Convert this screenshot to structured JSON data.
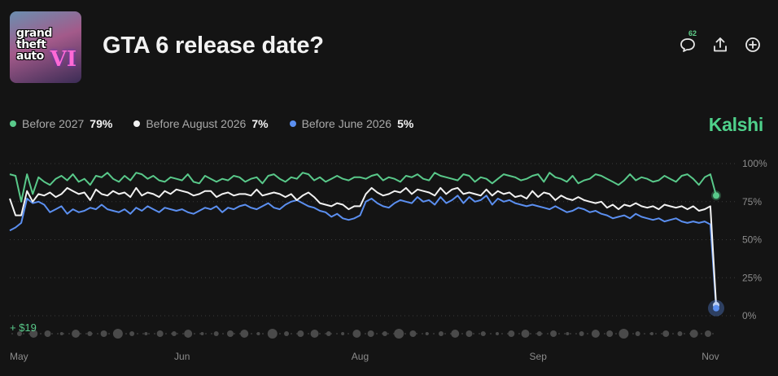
{
  "header": {
    "title": "GTA 6 release date?",
    "thumbnail_text": "grand theft auto",
    "thumbnail_mark": "VI",
    "comment_count": "62",
    "icons": [
      "comment-icon",
      "share-icon",
      "add-icon"
    ]
  },
  "brand": "Kalshi",
  "colors": {
    "green": "#59c98a",
    "white": "#f2f2f2",
    "blue": "#5b8ff0",
    "background": "#141414"
  },
  "legend": [
    {
      "name": "Before 2027",
      "value": "79%",
      "color": "#59c98a"
    },
    {
      "name": "Before August 2026",
      "value": "7%",
      "color": "#f2f2f2"
    },
    {
      "name": "Before June 2026",
      "value": "5%",
      "color": "#5b8ff0"
    }
  ],
  "volume_label": "+ $19",
  "chart_data": {
    "type": "line",
    "title": "",
    "xlabel": "",
    "ylabel": "",
    "ylim": [
      0,
      100
    ],
    "yticks": [
      "100%",
      "75%",
      "50%",
      "25%",
      "0%"
    ],
    "ytick_values": [
      100,
      75,
      50,
      25,
      0
    ],
    "xticks": [
      "May",
      "Jun",
      "Aug",
      "Sep",
      "Nov"
    ],
    "xtick_positions": [
      0,
      30,
      61,
      92,
      122
    ],
    "x_range": [
      0,
      123
    ],
    "grid": true,
    "legend_position": "top-left",
    "series": [
      {
        "name": "Before 2027",
        "color": "#59c98a",
        "values": [
          93,
          92,
          75,
          93,
          80,
          91,
          88,
          86,
          90,
          92,
          89,
          93,
          88,
          90,
          86,
          92,
          91,
          94,
          90,
          88,
          92,
          89,
          94,
          93,
          90,
          92,
          89,
          88,
          91,
          90,
          89,
          93,
          88,
          87,
          92,
          90,
          88,
          90,
          89,
          92,
          91,
          88,
          90,
          91,
          87,
          92,
          93,
          90,
          88,
          91,
          90,
          94,
          93,
          89,
          91,
          88,
          90,
          92,
          90,
          89,
          91,
          91,
          90,
          92,
          93,
          89,
          91,
          90,
          88,
          92,
          91,
          93,
          90,
          89,
          94,
          92,
          91,
          90,
          89,
          93,
          92,
          88,
          91,
          90,
          87,
          90,
          93,
          92,
          91,
          89,
          90,
          92,
          93,
          88,
          94,
          91,
          90,
          88,
          92,
          87,
          89,
          90,
          93,
          92,
          90,
          88,
          86,
          89,
          93,
          89,
          91,
          90,
          88,
          89,
          92,
          90,
          88,
          92,
          93,
          90,
          86,
          91,
          93,
          79
        ],
        "end_value": 79
      },
      {
        "name": "Before August 2026",
        "color": "#f2f2f2",
        "values": [
          77,
          66,
          66,
          82,
          75,
          80,
          79,
          81,
          78,
          80,
          84,
          82,
          80,
          81,
          76,
          83,
          80,
          79,
          82,
          80,
          81,
          78,
          84,
          79,
          81,
          80,
          78,
          82,
          80,
          83,
          82,
          81,
          79,
          80,
          82,
          82,
          78,
          80,
          81,
          79,
          80,
          80,
          79,
          83,
          79,
          80,
          81,
          80,
          78,
          80,
          76,
          79,
          81,
          78,
          74,
          73,
          72,
          74,
          73,
          70,
          72,
          72,
          80,
          84,
          81,
          79,
          80,
          82,
          81,
          84,
          80,
          83,
          82,
          81,
          79,
          84,
          80,
          83,
          84,
          80,
          81,
          80,
          79,
          83,
          79,
          82,
          80,
          81,
          78,
          79,
          77,
          82,
          78,
          81,
          80,
          76,
          79,
          77,
          76,
          78,
          76,
          75,
          74,
          75,
          71,
          73,
          70,
          73,
          72,
          74,
          72,
          71,
          72,
          70,
          73,
          72,
          71,
          72,
          70,
          72,
          69,
          70,
          72,
          7
        ],
        "end_value": 7
      },
      {
        "name": "Before June 2026",
        "color": "#5b8ff0",
        "values": [
          56,
          58,
          61,
          77,
          74,
          75,
          73,
          68,
          70,
          72,
          67,
          70,
          68,
          69,
          71,
          70,
          73,
          70,
          69,
          68,
          70,
          67,
          71,
          69,
          72,
          70,
          68,
          71,
          70,
          69,
          70,
          68,
          67,
          69,
          71,
          70,
          72,
          68,
          71,
          70,
          72,
          73,
          71,
          70,
          72,
          74,
          71,
          70,
          73,
          75,
          76,
          74,
          72,
          71,
          69,
          68,
          65,
          67,
          64,
          63,
          64,
          66,
          75,
          77,
          74,
          72,
          71,
          74,
          76,
          75,
          74,
          78,
          75,
          76,
          73,
          78,
          74,
          76,
          79,
          74,
          78,
          75,
          76,
          79,
          73,
          77,
          75,
          76,
          74,
          73,
          72,
          73,
          72,
          71,
          70,
          72,
          70,
          68,
          69,
          71,
          70,
          68,
          69,
          67,
          66,
          64,
          65,
          66,
          64,
          67,
          65,
          64,
          63,
          64,
          62,
          63,
          64,
          62,
          61,
          62,
          61,
          62,
          60,
          5
        ],
        "end_value": 5
      }
    ]
  },
  "x_axis": {
    "labels": [
      "May",
      "Jun",
      "Aug",
      "Sep",
      "Nov"
    ]
  }
}
